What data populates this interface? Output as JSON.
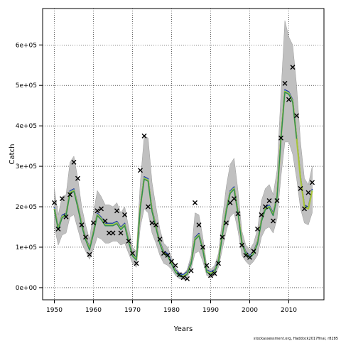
{
  "chart_data": {
    "type": "line",
    "xlabel": "Years",
    "ylabel": "Catch",
    "footer": "stockassessment.org, Haddock2017final, r8285",
    "xlim": [
      1947,
      2019
    ],
    "ylim": [
      -30000,
      690000
    ],
    "xticks": [
      1950,
      1960,
      1970,
      1980,
      1990,
      2000,
      2010
    ],
    "yticks": [
      0,
      100000,
      200000,
      300000,
      400000,
      500000,
      600000
    ],
    "ytick_labels": [
      "0e+00",
      "1e+05",
      "2e+05",
      "3e+05",
      "4e+05",
      "5e+05",
      "6e+05"
    ],
    "grid": true,
    "colors": {
      "band": "#c0c0c0",
      "fit_1": "#1f2a8f",
      "fit_2": "#5bb4e6",
      "fit_3": "#2e8b57",
      "fit_4": "#a8c43a",
      "observed": "#000000"
    },
    "fit": {
      "x": [
        1950,
        1951,
        1952,
        1953,
        1954,
        1955,
        1956,
        1957,
        1958,
        1959,
        1960,
        1961,
        1962,
        1963,
        1964,
        1965,
        1966,
        1967,
        1968,
        1969,
        1970,
        1971,
        1972,
        1973,
        1974,
        1975,
        1976,
        1977,
        1978,
        1979,
        1980,
        1981,
        1982,
        1983,
        1984,
        1985,
        1986,
        1987,
        1988,
        1989,
        1990,
        1991,
        1992,
        1993,
        1994,
        1995,
        1996,
        1997,
        1998,
        1999,
        2000,
        2001,
        2002,
        2003,
        2004,
        2005,
        2006,
        2007,
        2008,
        2009,
        2010,
        2011,
        2012,
        2013,
        2014,
        2015,
        2016
      ],
      "y": [
        195000,
        145000,
        175000,
        180000,
        235000,
        240000,
        200000,
        155000,
        120000,
        95000,
        135000,
        180000,
        170000,
        155000,
        155000,
        155000,
        160000,
        145000,
        155000,
        115000,
        80000,
        70000,
        200000,
        270000,
        265000,
        190000,
        150000,
        110000,
        85000,
        80000,
        60000,
        40000,
        30000,
        28000,
        35000,
        60000,
        120000,
        130000,
        95000,
        40000,
        35000,
        40000,
        65000,
        130000,
        190000,
        235000,
        245000,
        185000,
        110000,
        85000,
        75000,
        85000,
        110000,
        165000,
        195000,
        200000,
        180000,
        225000,
        370000,
        485000,
        480000,
        460000,
        370000,
        270000,
        200000,
        195000,
        240000
      ]
    },
    "band": {
      "x": [
        1950,
        1951,
        1952,
        1953,
        1954,
        1955,
        1956,
        1957,
        1958,
        1959,
        1960,
        1961,
        1962,
        1963,
        1964,
        1965,
        1966,
        1967,
        1968,
        1969,
        1970,
        1971,
        1972,
        1973,
        1974,
        1975,
        1976,
        1977,
        1978,
        1979,
        1980,
        1981,
        1982,
        1983,
        1984,
        1985,
        1986,
        1987,
        1988,
        1989,
        1990,
        1991,
        1992,
        1993,
        1994,
        1995,
        1996,
        1997,
        1998,
        1999,
        2000,
        2001,
        2002,
        2003,
        2004,
        2005,
        2006,
        2007,
        2008,
        2009,
        2010,
        2011,
        2012,
        2013,
        2014,
        2015,
        2016
      ],
      "upper": [
        245000,
        180000,
        225000,
        230000,
        310000,
        325000,
        270000,
        200000,
        155000,
        120000,
        185000,
        240000,
        225000,
        205000,
        205000,
        200000,
        210000,
        185000,
        200000,
        150000,
        100000,
        90000,
        260000,
        375000,
        370000,
        260000,
        200000,
        145000,
        110000,
        100000,
        75000,
        50000,
        38000,
        34000,
        45000,
        80000,
        185000,
        180000,
        125000,
        55000,
        45000,
        55000,
        85000,
        170000,
        250000,
        305000,
        320000,
        240000,
        140000,
        105000,
        95000,
        110000,
        145000,
        215000,
        245000,
        255000,
        230000,
        290000,
        480000,
        660000,
        620000,
        600000,
        500000,
        360000,
        270000,
        255000,
        300000
      ],
      "lower": [
        150000,
        105000,
        130000,
        135000,
        175000,
        180000,
        145000,
        110000,
        90000,
        70000,
        95000,
        125000,
        120000,
        110000,
        110000,
        115000,
        115000,
        105000,
        110000,
        85000,
        60000,
        50000,
        150000,
        195000,
        185000,
        135000,
        110000,
        80000,
        60000,
        55000,
        45000,
        30000,
        22000,
        20000,
        25000,
        45000,
        85000,
        90000,
        65000,
        30000,
        25000,
        30000,
        50000,
        95000,
        140000,
        175000,
        185000,
        140000,
        80000,
        65000,
        55000,
        65000,
        80000,
        125000,
        145000,
        150000,
        135000,
        170000,
        275000,
        360000,
        360000,
        330000,
        270000,
        195000,
        160000,
        155000,
        185000
      ]
    },
    "observed": {
      "x": [
        1950,
        1951,
        1952,
        1953,
        1954,
        1955,
        1956,
        1957,
        1958,
        1959,
        1960,
        1961,
        1962,
        1963,
        1964,
        1965,
        1966,
        1967,
        1968,
        1969,
        1970,
        1971,
        1972,
        1973,
        1974,
        1975,
        1976,
        1977,
        1978,
        1979,
        1980,
        1981,
        1982,
        1983,
        1984,
        1985,
        1986,
        1987,
        1988,
        1989,
        1990,
        1991,
        1992,
        1993,
        1994,
        1995,
        1996,
        1997,
        1998,
        1999,
        2000,
        2001,
        2002,
        2003,
        2004,
        2005,
        2006,
        2007,
        2008,
        2009,
        2010,
        2011,
        2012,
        2013,
        2014,
        2015,
        2016
      ],
      "y": [
        210000,
        145000,
        220000,
        175000,
        230000,
        310000,
        270000,
        155000,
        125000,
        82000,
        160000,
        190000,
        195000,
        165000,
        135000,
        135000,
        190000,
        135000,
        180000,
        115000,
        85000,
        60000,
        290000,
        375000,
        200000,
        160000,
        155000,
        120000,
        85000,
        80000,
        65000,
        55000,
        32000,
        25000,
        22000,
        42000,
        210000,
        155000,
        100000,
        55000,
        30000,
        35000,
        60000,
        125000,
        160000,
        210000,
        220000,
        183000,
        105000,
        80000,
        75000,
        90000,
        145000,
        180000,
        200000,
        215000,
        165000,
        215000,
        370000,
        505000,
        465000,
        545000,
        425000,
        245000,
        195000,
        235000,
        260000
      ]
    }
  }
}
